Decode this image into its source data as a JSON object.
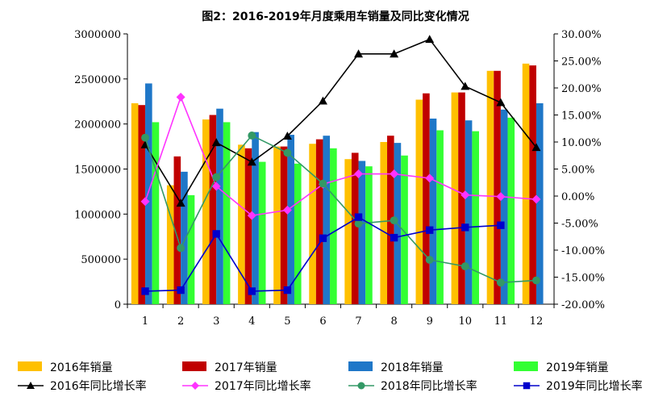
{
  "chart_data": {
    "type": "bar",
    "title": "图2：2016-2019年月度乘用车销量及同比变化情况",
    "categories": [
      "1",
      "2",
      "3",
      "4",
      "5",
      "6",
      "7",
      "8",
      "9",
      "10",
      "11",
      "12"
    ],
    "y_left": {
      "ylim": [
        0,
        3000000
      ],
      "ticks": [
        "0",
        "500000",
        "1000000",
        "1500000",
        "2000000",
        "2500000",
        "3000000"
      ]
    },
    "y_right": {
      "ylim": [
        -20,
        30
      ],
      "ticks": [
        "-20.00%",
        "-15.00%",
        "-10.00%",
        "-5.00%",
        "0.00%",
        "5.00%",
        "10.00%",
        "15.00%",
        "20.00%",
        "25.00%",
        "30.00%"
      ]
    },
    "grid": false,
    "legend_position": "bottom",
    "bar_series": [
      {
        "name": "2016年销量",
        "color": "#FFC000",
        "values": [
          2230000,
          1320000,
          2050000,
          1770000,
          1750000,
          1780000,
          1610000,
          1800000,
          2270000,
          2350000,
          2590000,
          2670000
        ]
      },
      {
        "name": "2017年销量",
        "color": "#C00000",
        "values": [
          2210000,
          1640000,
          2100000,
          1730000,
          1750000,
          1830000,
          1680000,
          1870000,
          2340000,
          2350000,
          2590000,
          2650000
        ]
      },
      {
        "name": "2018年销量",
        "color": "#1F77C8",
        "values": [
          2450000,
          1470000,
          2170000,
          1910000,
          1880000,
          1870000,
          1590000,
          1790000,
          2060000,
          2040000,
          2160000,
          2230000
        ]
      },
      {
        "name": "2019年销量",
        "color": "#33FF33",
        "values": [
          2020000,
          1210000,
          2020000,
          1580000,
          1560000,
          1730000,
          1530000,
          1650000,
          1930000,
          1920000,
          2070000,
          null
        ]
      }
    ],
    "line_series": [
      {
        "name": "2016年同比增长率",
        "color": "#000000",
        "marker": "triangle",
        "values": [
          9.5,
          -1.3,
          9.9,
          6.3,
          11.1,
          17.6,
          26.3,
          26.3,
          29.0,
          20.3,
          17.3,
          9.0
        ]
      },
      {
        "name": "2017年同比增长率",
        "color": "#FF33FF",
        "marker": "diamond",
        "values": [
          -1.0,
          18.3,
          1.8,
          -3.6,
          -2.6,
          2.2,
          4.1,
          4.1,
          3.3,
          0.2,
          -0.1,
          -0.6
        ]
      },
      {
        "name": "2018年同比增长率",
        "color": "#339966",
        "marker": "circle",
        "values": [
          10.8,
          -9.6,
          3.5,
          11.2,
          8.0,
          2.3,
          -5.1,
          -4.5,
          -11.8,
          -13.0,
          -16.0,
          -15.6
        ]
      },
      {
        "name": "2019年同比增长率",
        "color": "#0000CC",
        "marker": "square",
        "values": [
          -17.6,
          -17.4,
          -7.0,
          -17.6,
          -17.4,
          -7.8,
          -3.9,
          -7.7,
          -6.3,
          -5.8,
          -5.4,
          null
        ]
      }
    ]
  }
}
